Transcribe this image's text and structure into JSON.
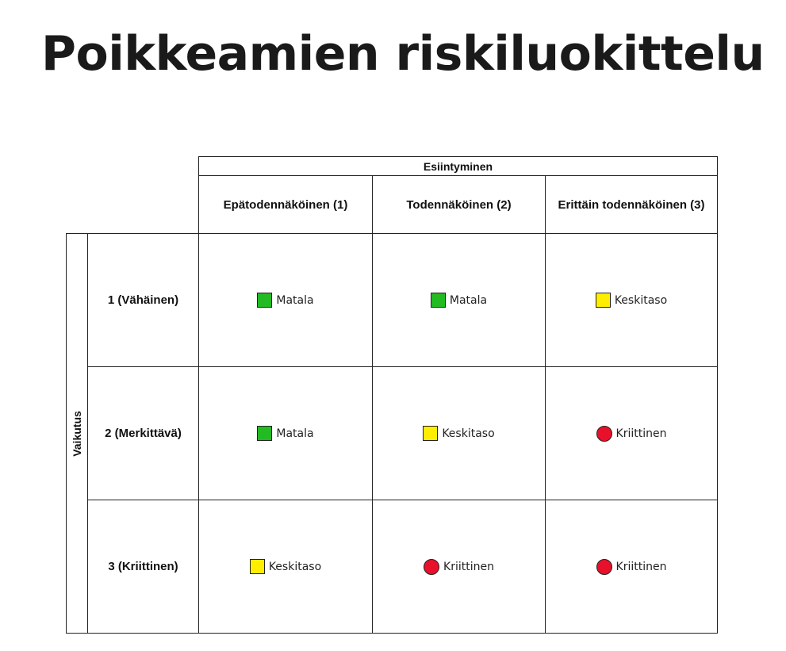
{
  "title": "Poikkeamien riskiluokittelu",
  "matrix": {
    "column_axis_label": "Esiintyminen",
    "row_axis_label": "Vaikutus",
    "columns": [
      "Epätodennäköinen (1)",
      "Todennäköinen (2)",
      "Erittäin todennäköinen (3)"
    ],
    "rows": [
      {
        "label": "1 (Vähäinen)",
        "cells": [
          {
            "text": "Matala",
            "shape": "square",
            "color": "#22bb22"
          },
          {
            "text": "Matala",
            "shape": "square",
            "color": "#22bb22"
          },
          {
            "text": "Keskitaso",
            "shape": "square",
            "color": "#ffee00"
          }
        ]
      },
      {
        "label": "2 (Merkittävä)",
        "cells": [
          {
            "text": "Matala",
            "shape": "square",
            "color": "#22bb22"
          },
          {
            "text": "Keskitaso",
            "shape": "square",
            "color": "#ffee00"
          },
          {
            "text": "Kriittinen",
            "shape": "circle",
            "color": "#e8102a"
          }
        ]
      },
      {
        "label": "3 (Kriittinen)",
        "cells": [
          {
            "text": "Keskitaso",
            "shape": "square",
            "color": "#ffee00"
          },
          {
            "text": "Kriittinen",
            "shape": "circle",
            "color": "#e8102a"
          },
          {
            "text": "Kriittinen",
            "shape": "circle",
            "color": "#e8102a"
          }
        ]
      }
    ]
  }
}
